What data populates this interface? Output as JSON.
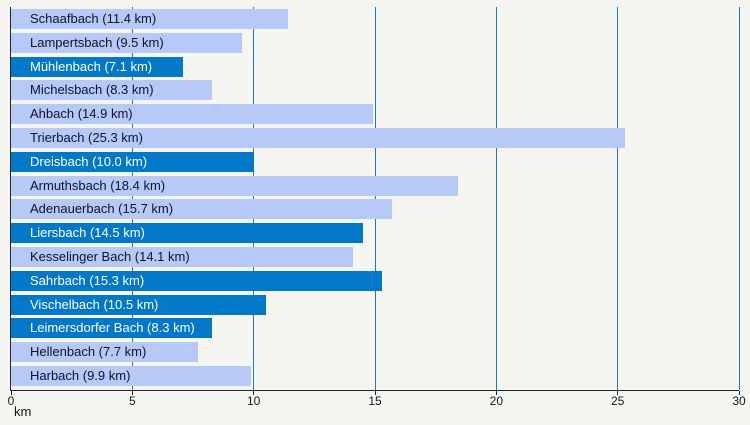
{
  "chart_data": {
    "type": "bar",
    "orientation": "horizontal",
    "title": "",
    "xlabel": "km",
    "ylabel": "",
    "xlim": [
      0,
      30
    ],
    "x_ticks": [
      0,
      5,
      10,
      15,
      20,
      25,
      30
    ],
    "grid": true,
    "legend": false,
    "categories": [
      "Schaafbach",
      "Lampertsbach",
      "Mühlenbach",
      "Michelsbach",
      "Ahbach",
      "Trierbach",
      "Dreisbach",
      "Armuthsbach",
      "Adenauerbach",
      "Liersbach",
      "Kesselinger Bach",
      "Sahrbach",
      "Vischelbach",
      "Leimersdorfer Bach",
      "Hellenbach",
      "Harbach"
    ],
    "values": [
      11.4,
      9.5,
      7.1,
      8.3,
      14.9,
      25.3,
      10.0,
      18.4,
      15.7,
      14.5,
      14.1,
      15.3,
      10.5,
      8.3,
      7.7,
      9.9
    ],
    "bar_labels": [
      "Schaafbach (11.4 km)",
      "Lampertsbach (9.5 km)",
      "Mühlenbach (7.1 km)",
      "Michelsbach (8.3 km)",
      "Ahbach (14.9 km)",
      "Trierbach (25.3 km)",
      "Dreisbach (10.0 km)",
      "Armuthsbach (18.4 km)",
      "Adenauerbach (15.7 km)",
      "Liersbach (14.5 km)",
      "Kesselinger Bach (14.1 km)",
      "Sahrbach (15.3 km)",
      "Vischelbach (10.5 km)",
      "Leimersdorfer Bach (8.3 km)",
      "Hellenbach (7.7 km)",
      "Harbach (9.9 km)"
    ],
    "highlighted": [
      false,
      false,
      true,
      false,
      false,
      false,
      true,
      false,
      false,
      true,
      false,
      true,
      true,
      true,
      false,
      false
    ],
    "colors": {
      "background": "#f5f6f2",
      "bar_light": "#b7c9f6",
      "bar_dark": "#0478c8",
      "label_on_light": "#0d1230",
      "label_on_dark": "#ffffff",
      "gridline": "#1e78b4",
      "axis": "#22262b",
      "tick_text": "#15181c"
    }
  }
}
